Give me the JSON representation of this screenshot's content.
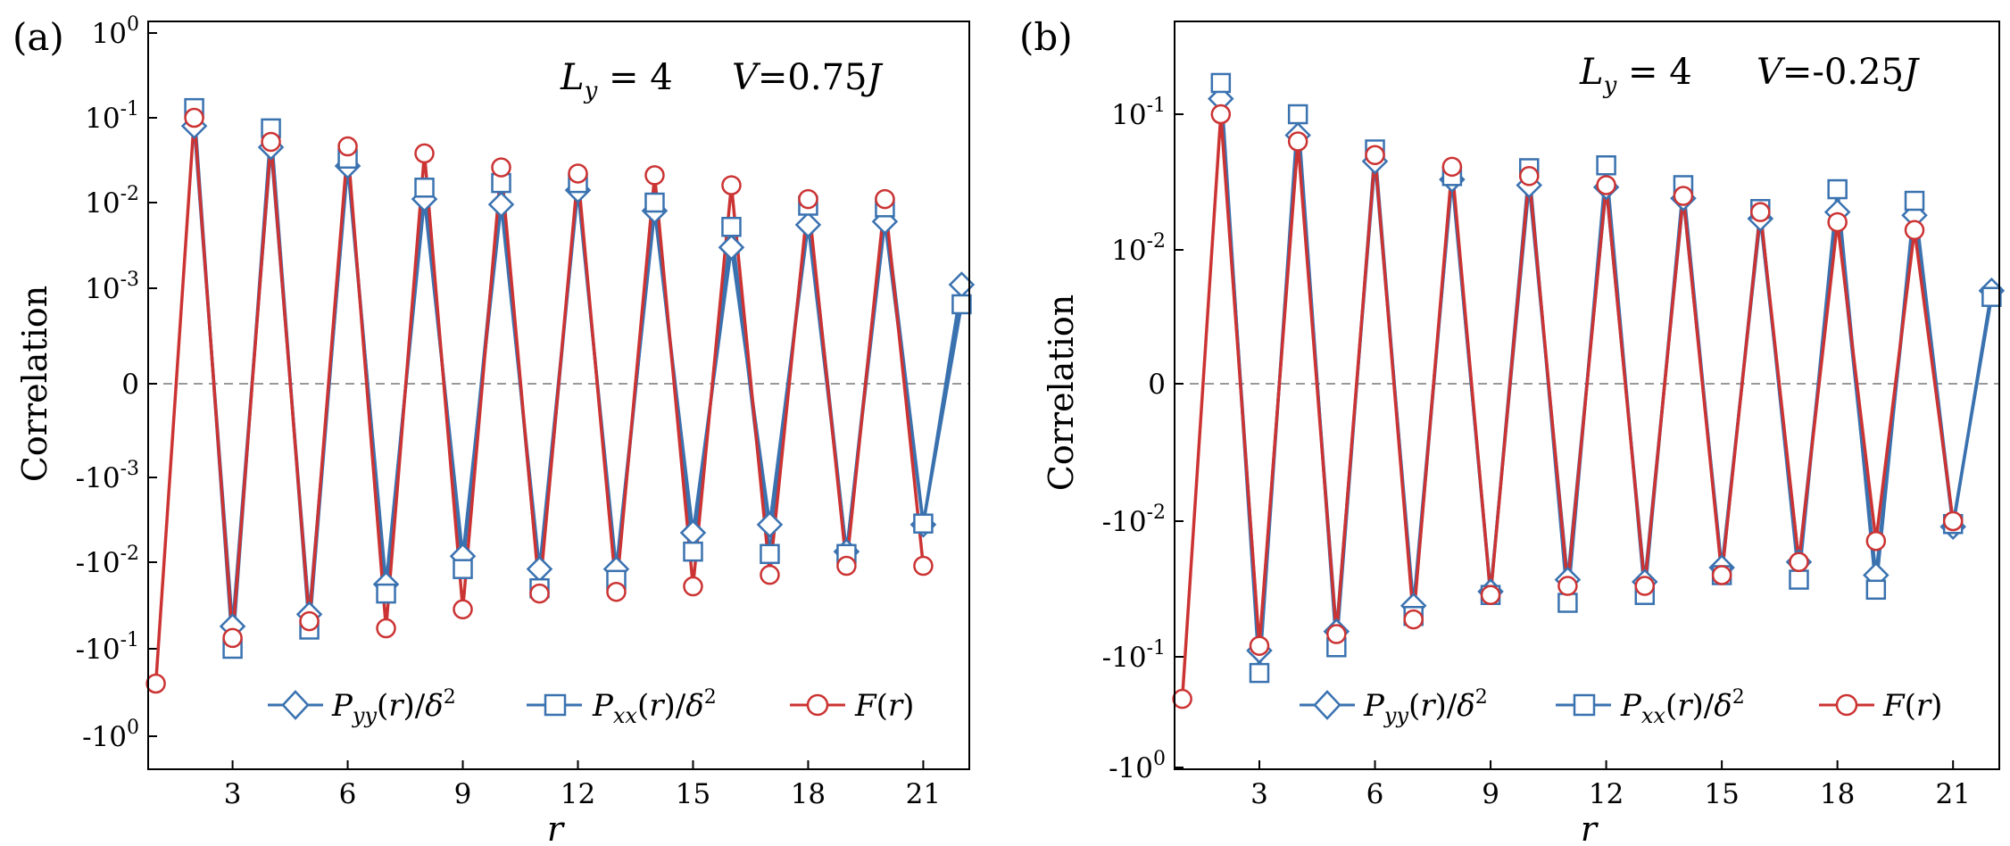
{
  "colors": {
    "blue": "#3a72b0",
    "red": "#cc3333",
    "zero_line": "#999999",
    "axis": "#000000"
  },
  "chart_data": [
    {
      "panel": "(a)",
      "type": "line",
      "yscale": "symlog",
      "annotation_ly": "L_y = 4",
      "annotation_v": "V = 0.75J",
      "xlabel": "r",
      "ylabel": "Correlation",
      "xlim": [
        0.8,
        22.2
      ],
      "ylim_exp": [
        -0.2,
        0.2
      ],
      "xticks": [
        3,
        6,
        9,
        12,
        15,
        18,
        21
      ],
      "xtick_labels": [
        "3",
        "6",
        "9",
        "12",
        "15",
        "18",
        "21"
      ],
      "yticks": [
        {
          "sign": -1,
          "exp": 0,
          "label": "-10^0"
        },
        {
          "sign": -1,
          "exp": -1,
          "label": "-10^-1"
        },
        {
          "sign": -1,
          "exp": -2,
          "label": "-10^-2"
        },
        {
          "sign": -1,
          "exp": -3,
          "label": "-10^-3"
        },
        {
          "sign": 0,
          "exp": null,
          "label": "0"
        },
        {
          "sign": 1,
          "exp": -3,
          "label": "10^-3"
        },
        {
          "sign": 1,
          "exp": -2,
          "label": "10^-2"
        },
        {
          "sign": 1,
          "exp": -1,
          "label": "10^-1"
        },
        {
          "sign": 1,
          "exp": 0,
          "label": "10^0"
        }
      ],
      "legend": [
        "P_yy(r)/δ²",
        "P_xx(r)/δ²",
        "F(r)"
      ],
      "series": [
        {
          "name": "P_yy(r)/δ^2",
          "marker": "diamond",
          "color": "#3a72b0",
          "x": [
            2,
            3,
            4,
            5,
            6,
            7,
            8,
            9,
            10,
            11,
            12,
            13,
            14,
            15,
            16,
            17,
            18,
            19,
            20,
            21,
            22
          ],
          "y": [
            0.08,
            -0.055,
            0.045,
            -0.04,
            0.027,
            -0.018,
            0.011,
            -0.0085,
            0.0095,
            -0.012,
            0.014,
            -0.012,
            0.008,
            -0.0045,
            0.003,
            -0.0036,
            0.0055,
            -0.0075,
            0.006,
            -0.0036,
            0.0011
          ]
        },
        {
          "name": "P_xx(r)/δ^2",
          "marker": "square",
          "color": "#3a72b0",
          "x": [
            2,
            3,
            4,
            5,
            6,
            7,
            8,
            9,
            10,
            11,
            12,
            13,
            14,
            15,
            16,
            17,
            18,
            19,
            20,
            21,
            22
          ],
          "y": [
            0.13,
            -0.1,
            0.075,
            -0.06,
            0.033,
            -0.023,
            0.015,
            -0.012,
            0.017,
            -0.02,
            0.017,
            -0.016,
            0.01,
            -0.0075,
            0.0052,
            -0.008,
            0.0092,
            -0.008,
            0.0088,
            -0.0035,
            0.00065
          ]
        },
        {
          "name": "F(r)",
          "marker": "circle",
          "color": "#cc3333",
          "x": [
            1,
            2,
            3,
            4,
            5,
            6,
            7,
            8,
            9,
            10,
            11,
            12,
            13,
            14,
            15,
            16,
            17,
            18,
            19,
            20,
            21
          ],
          "y": [
            -0.25,
            0.1,
            -0.075,
            0.052,
            -0.048,
            0.046,
            -0.058,
            0.038,
            -0.035,
            0.026,
            -0.023,
            0.022,
            -0.022,
            0.021,
            -0.019,
            0.016,
            -0.014,
            0.011,
            -0.011,
            0.011,
            -0.011
          ]
        }
      ]
    },
    {
      "panel": "(b)",
      "type": "line",
      "yscale": "symlog",
      "annotation_ly": "L_y = 4",
      "annotation_v": "V = -0.25J",
      "xlabel": "r",
      "ylabel": "Correlation",
      "xlim": [
        0.8,
        22.2
      ],
      "ylim_exp": [
        -0.2,
        0.2
      ],
      "xticks": [
        3,
        6,
        9,
        12,
        15,
        18,
        21
      ],
      "xtick_labels": [
        "3",
        "6",
        "9",
        "12",
        "15",
        "18",
        "21"
      ],
      "yticks": [
        {
          "sign": -1,
          "exp": 0,
          "label": "-10^0"
        },
        {
          "sign": -1,
          "exp": -1,
          "label": "-10^-1"
        },
        {
          "sign": -1,
          "exp": -2,
          "label": "-10^-2"
        },
        {
          "sign": 0,
          "exp": null,
          "label": "0"
        },
        {
          "sign": 1,
          "exp": -2,
          "label": "10^-2"
        },
        {
          "sign": 1,
          "exp": -1,
          "label": "10^-1"
        }
      ],
      "legend": [
        "P_yy(r)/δ²",
        "P_xx(r)/δ²",
        "F(r)"
      ],
      "series": [
        {
          "name": "P_yy(r)/δ^2",
          "marker": "diamond",
          "color": "#3a72b0",
          "x": [
            2,
            3,
            4,
            5,
            6,
            7,
            8,
            9,
            10,
            11,
            12,
            13,
            14,
            15,
            16,
            17,
            18,
            19,
            20,
            21,
            22
          ],
          "y": [
            0.13,
            -0.09,
            0.07,
            -0.065,
            0.045,
            -0.042,
            0.033,
            -0.033,
            0.03,
            -0.027,
            0.029,
            -0.028,
            0.024,
            -0.022,
            0.017,
            -0.02,
            0.019,
            -0.025,
            0.018,
            -0.011,
            0.005
          ]
        },
        {
          "name": "P_xx(r)/δ^2",
          "marker": "square",
          "color": "#3a72b0",
          "x": [
            2,
            3,
            4,
            5,
            6,
            7,
            8,
            9,
            10,
            11,
            12,
            13,
            14,
            15,
            16,
            17,
            18,
            19,
            20,
            21,
            22
          ],
          "y": [
            0.17,
            -0.14,
            0.1,
            -0.085,
            0.055,
            -0.05,
            0.035,
            -0.035,
            0.04,
            -0.04,
            0.042,
            -0.035,
            0.03,
            -0.025,
            0.02,
            -0.027,
            0.028,
            -0.032,
            0.023,
            -0.0105,
            0.0045
          ]
        },
        {
          "name": "F(r)",
          "marker": "circle",
          "color": "#cc3333",
          "x": [
            1,
            2,
            3,
            4,
            5,
            6,
            7,
            8,
            9,
            10,
            11,
            12,
            13,
            14,
            15,
            16,
            17,
            18,
            19,
            20,
            21
          ],
          "y": [
            -0.24,
            0.1,
            -0.083,
            0.063,
            -0.068,
            0.05,
            -0.053,
            0.041,
            -0.035,
            0.035,
            -0.03,
            0.03,
            -0.03,
            0.025,
            -0.025,
            0.019,
            -0.02,
            0.016,
            -0.014,
            0.014,
            -0.01
          ]
        }
      ]
    }
  ]
}
